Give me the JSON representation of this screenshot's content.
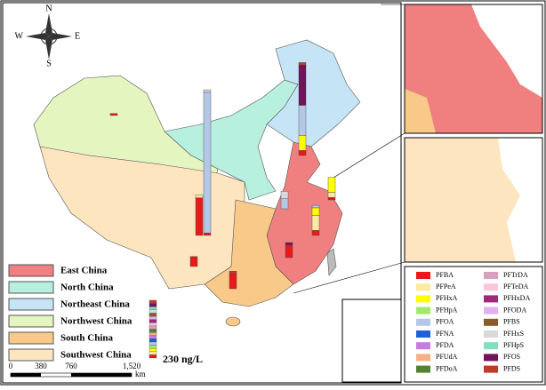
{
  "compass": {
    "north": "N",
    "south": "S",
    "east": "E",
    "west": "W"
  },
  "regions": [
    {
      "name": "East China",
      "color": "#f08080"
    },
    {
      "name": "North China",
      "color": "#b8f0e0"
    },
    {
      "name": "Northeast China",
      "color": "#c5e4f5"
    },
    {
      "name": "Northwest China",
      "color": "#e4f5c0"
    },
    {
      "name": "South China",
      "color": "#f9c98a"
    },
    {
      "name": "Southwest China",
      "color": "#fde5c0"
    }
  ],
  "compounds": [
    {
      "name": "PFBA",
      "color": "#e8191a"
    },
    {
      "name": "PFPeA",
      "color": "#fde9a0"
    },
    {
      "name": "PFHxA",
      "color": "#ffff00"
    },
    {
      "name": "PFHpA",
      "color": "#a3e86a"
    },
    {
      "name": "PFOA",
      "color": "#b4c7e7"
    },
    {
      "name": "PFNA",
      "color": "#1f5fd8"
    },
    {
      "name": "PFDA",
      "color": "#c77de0"
    },
    {
      "name": "PFUdA",
      "color": "#f4b183"
    },
    {
      "name": "PFDoA",
      "color": "#548235"
    },
    {
      "name": "PFTrDA",
      "color": "#d9a0c0"
    },
    {
      "name": "PFTeDA",
      "color": "#f8c8d8"
    },
    {
      "name": "PFHxDA",
      "color": "#a0287a"
    },
    {
      "name": "PFODA",
      "color": "#e0b0f0"
    },
    {
      "name": "PFBS",
      "color": "#8b5a2b"
    },
    {
      "name": "PFHxS",
      "color": "#d9d9d9"
    },
    {
      "name": "PFHpS",
      "color": "#7fdfc0"
    },
    {
      "name": "PFOS",
      "color": "#70135a"
    },
    {
      "name": "PFDS",
      "color": "#c0392b"
    }
  ],
  "scale_bar": {
    "ticks": [
      "0",
      "380",
      "760",
      "1,520"
    ],
    "unit": "km"
  },
  "reference_bar": {
    "label": "230 ng/L"
  },
  "sites": [
    [
      10,
      0,
      0,
      0,
      560,
      0,
      0,
      0,
      0,
      0,
      0,
      0,
      0,
      0,
      10,
      0,
      0,
      0
    ],
    [
      20,
      0,
      60,
      0,
      120,
      0,
      0,
      0,
      0,
      0,
      0,
      0,
      0,
      0,
      0,
      0,
      160,
      10
    ],
    [
      150,
      10,
      0,
      0,
      0,
      0,
      0,
      0,
      0,
      0,
      0,
      0,
      0,
      0,
      0,
      0,
      0,
      0
    ],
    [
      10,
      20,
      60,
      0,
      0,
      0,
      0,
      0,
      0,
      0,
      0,
      0,
      0,
      0,
      0,
      0,
      0,
      0
    ],
    [
      20,
      60,
      30,
      0,
      10,
      0,
      0,
      0,
      0,
      0,
      0,
      0,
      0,
      0,
      0,
      0,
      0,
      0
    ],
    [
      50,
      0,
      0,
      0,
      0,
      0,
      0,
      0,
      0,
      0,
      0,
      0,
      0,
      0,
      0,
      0,
      10,
      0
    ],
    [
      60,
      0,
      0,
      0,
      0,
      0,
      0,
      0,
      0,
      0,
      0,
      0,
      0,
      0,
      0,
      0,
      0,
      10
    ],
    [
      40,
      0,
      0,
      0,
      0,
      0,
      0,
      0,
      0,
      0,
      0,
      0,
      0,
      0,
      0,
      0,
      0,
      0
    ],
    [
      0,
      0,
      0,
      0,
      40,
      0,
      0,
      0,
      0,
      0,
      0,
      0,
      0,
      0,
      30,
      0,
      0,
      0
    ],
    [
      8,
      0,
      0,
      0,
      0,
      0,
      0,
      0,
      0,
      0,
      0,
      0,
      0,
      0,
      0,
      0,
      0,
      0
    ]
  ]
}
